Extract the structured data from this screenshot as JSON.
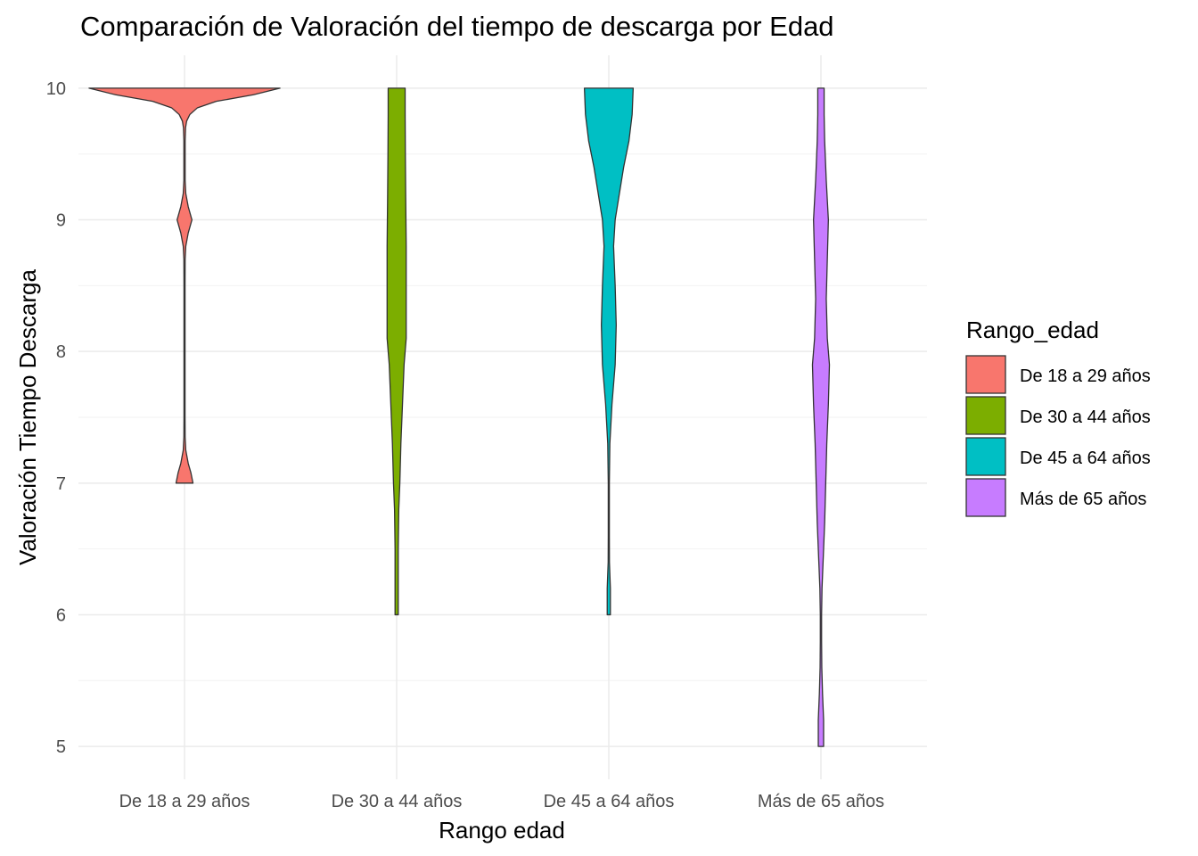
{
  "chart_data": {
    "type": "violin",
    "title": "Comparación de Valoración del tiempo de descarga por Edad",
    "xlabel": "Rango edad",
    "ylabel": "Valoración Tiempo Descarga",
    "categories": [
      "De 18 a 29 años",
      "De 30 a 44 años",
      "De 45 a 64 años",
      "Más de 65 años"
    ],
    "ylim": [
      5,
      10
    ],
    "yticks": [
      5,
      6,
      7,
      8,
      9,
      10
    ],
    "grid": true,
    "legend": {
      "title": "Rango_edad",
      "position": "right",
      "items": [
        "De 18 a 29 años",
        "De 30 a 44 años",
        "De 45 a 64 años",
        "Más de 65 años"
      ]
    },
    "colors": [
      "#F8766D",
      "#7CAE00",
      "#00BFC4",
      "#C77CFF"
    ],
    "outline_color": "#333333",
    "series": [
      {
        "name": "De 18 a 29 años",
        "density": [
          [
            7.0,
            0.08
          ],
          [
            7.08,
            0.06
          ],
          [
            7.15,
            0.035
          ],
          [
            7.25,
            0.012
          ],
          [
            7.35,
            0.006
          ],
          [
            7.5,
            0.005
          ],
          [
            8.0,
            0.005
          ],
          [
            8.5,
            0.005
          ],
          [
            8.7,
            0.006
          ],
          [
            8.8,
            0.012
          ],
          [
            8.9,
            0.035
          ],
          [
            9.0,
            0.07
          ],
          [
            9.1,
            0.035
          ],
          [
            9.2,
            0.012
          ],
          [
            9.3,
            0.006
          ],
          [
            9.6,
            0.006
          ],
          [
            9.7,
            0.01
          ],
          [
            9.75,
            0.02
          ],
          [
            9.8,
            0.05
          ],
          [
            9.85,
            0.12
          ],
          [
            9.9,
            0.3
          ],
          [
            9.95,
            0.65
          ],
          [
            10.0,
            0.9
          ]
        ]
      },
      {
        "name": "De 30 a 44 años",
        "density": [
          [
            6.0,
            0.015
          ],
          [
            6.5,
            0.015
          ],
          [
            6.8,
            0.02
          ],
          [
            7.0,
            0.03
          ],
          [
            7.3,
            0.04
          ],
          [
            7.6,
            0.055
          ],
          [
            7.9,
            0.07
          ],
          [
            8.1,
            0.09
          ],
          [
            8.4,
            0.09
          ],
          [
            8.8,
            0.09
          ],
          [
            9.2,
            0.085
          ],
          [
            9.5,
            0.082
          ],
          [
            9.8,
            0.08
          ],
          [
            10.0,
            0.08
          ]
        ]
      },
      {
        "name": "De 45 a 64 años",
        "density": [
          [
            6.0,
            0.015
          ],
          [
            6.2,
            0.015
          ],
          [
            6.4,
            0.006
          ],
          [
            6.6,
            0.005
          ],
          [
            7.0,
            0.005
          ],
          [
            7.3,
            0.01
          ],
          [
            7.6,
            0.03
          ],
          [
            7.9,
            0.06
          ],
          [
            8.2,
            0.07
          ],
          [
            8.5,
            0.06
          ],
          [
            8.8,
            0.045
          ],
          [
            9.0,
            0.06
          ],
          [
            9.2,
            0.1
          ],
          [
            9.4,
            0.14
          ],
          [
            9.6,
            0.19
          ],
          [
            9.8,
            0.22
          ],
          [
            10.0,
            0.23
          ]
        ]
      },
      {
        "name": "Más de 65 años",
        "density": [
          [
            5.0,
            0.025
          ],
          [
            5.2,
            0.025
          ],
          [
            5.4,
            0.015
          ],
          [
            5.6,
            0.008
          ],
          [
            5.8,
            0.006
          ],
          [
            6.0,
            0.006
          ],
          [
            6.2,
            0.01
          ],
          [
            6.4,
            0.02
          ],
          [
            6.7,
            0.035
          ],
          [
            7.0,
            0.045
          ],
          [
            7.3,
            0.055
          ],
          [
            7.6,
            0.07
          ],
          [
            7.9,
            0.08
          ],
          [
            8.1,
            0.06
          ],
          [
            8.4,
            0.05
          ],
          [
            8.7,
            0.06
          ],
          [
            9.0,
            0.07
          ],
          [
            9.3,
            0.05
          ],
          [
            9.6,
            0.035
          ],
          [
            9.8,
            0.03
          ],
          [
            10.0,
            0.03
          ]
        ]
      }
    ]
  }
}
